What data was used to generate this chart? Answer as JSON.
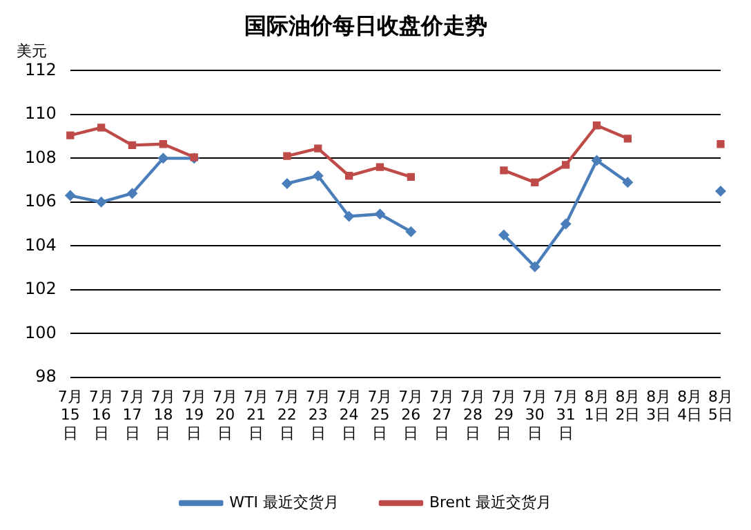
{
  "chart_data": {
    "type": "line",
    "title": "国际油价每日收盘价走势",
    "ylabel": "美元",
    "categories": [
      "7月15日",
      "7月16日",
      "7月17日",
      "7月18日",
      "7月19日",
      "7月20日",
      "7月21日",
      "7月22日",
      "7月23日",
      "7月24日",
      "7月25日",
      "7月26日",
      "7月27日",
      "7月28日",
      "7月29日",
      "7月30日",
      "7月31日",
      "8月1日",
      "8月2日",
      "8月3日",
      "8月4日",
      "8月5日"
    ],
    "series": [
      {
        "name": "WTI 最近交货月",
        "color": "#4a7ebb",
        "marker": "diamond",
        "values": [
          106.3,
          106.0,
          106.4,
          108.0,
          108.0,
          null,
          null,
          106.85,
          107.2,
          105.35,
          105.45,
          104.65,
          null,
          null,
          104.5,
          103.05,
          105.0,
          107.9,
          106.9,
          null,
          null,
          106.5
        ]
      },
      {
        "name": "Brent 最近交货月",
        "color": "#be4b48",
        "marker": "square",
        "values": [
          109.05,
          109.4,
          108.6,
          108.65,
          108.05,
          null,
          null,
          108.1,
          108.45,
          107.2,
          107.6,
          107.15,
          null,
          null,
          107.45,
          106.9,
          107.7,
          109.5,
          108.9,
          null,
          null,
          108.65
        ]
      }
    ],
    "ylim": [
      98,
      112
    ],
    "yticks": [
      98,
      100,
      102,
      104,
      106,
      108,
      110,
      112
    ],
    "grid": "y",
    "legend": "bottom",
    "line_style": "solid"
  }
}
